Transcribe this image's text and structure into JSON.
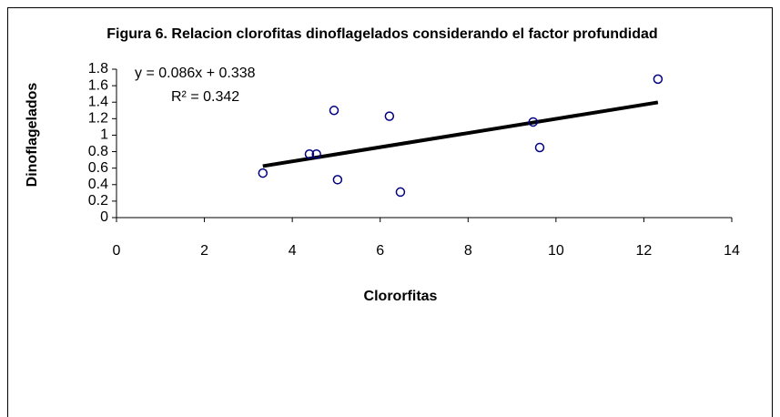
{
  "chart_data": {
    "type": "scatter",
    "title": "Figura 6. Relacion clorofitas dinoflagelados considerando el factor profundidad",
    "x_label": "Clororfitas",
    "y_label": "Dinoflagelados",
    "x": [
      3.33,
      4.39,
      4.55,
      4.95,
      5.03,
      6.21,
      6.46,
      9.48,
      9.63,
      12.32
    ],
    "series": [
      {
        "color": "#000080",
        "values": [
          0.54,
          0.77,
          0.77,
          1.3,
          0.46,
          1.23,
          0.31,
          1.16,
          0.85,
          1.68
        ]
      }
    ],
    "trendline": {
      "slope": 0.086,
      "intercept": 0.338,
      "color": "#000000",
      "equation": "y = 0.086x + 0.338",
      "r2_label": "R² = 0.342"
    },
    "xlim": [
      0,
      14
    ],
    "xticks": [
      0,
      2,
      4,
      6,
      8,
      10,
      12,
      14
    ],
    "ylim": [
      0,
      1.8
    ],
    "yticks": [
      0,
      0.2,
      0.4,
      0.6,
      0.8,
      1,
      1.2,
      1.4,
      1.6,
      1.8
    ],
    "grid": false
  }
}
